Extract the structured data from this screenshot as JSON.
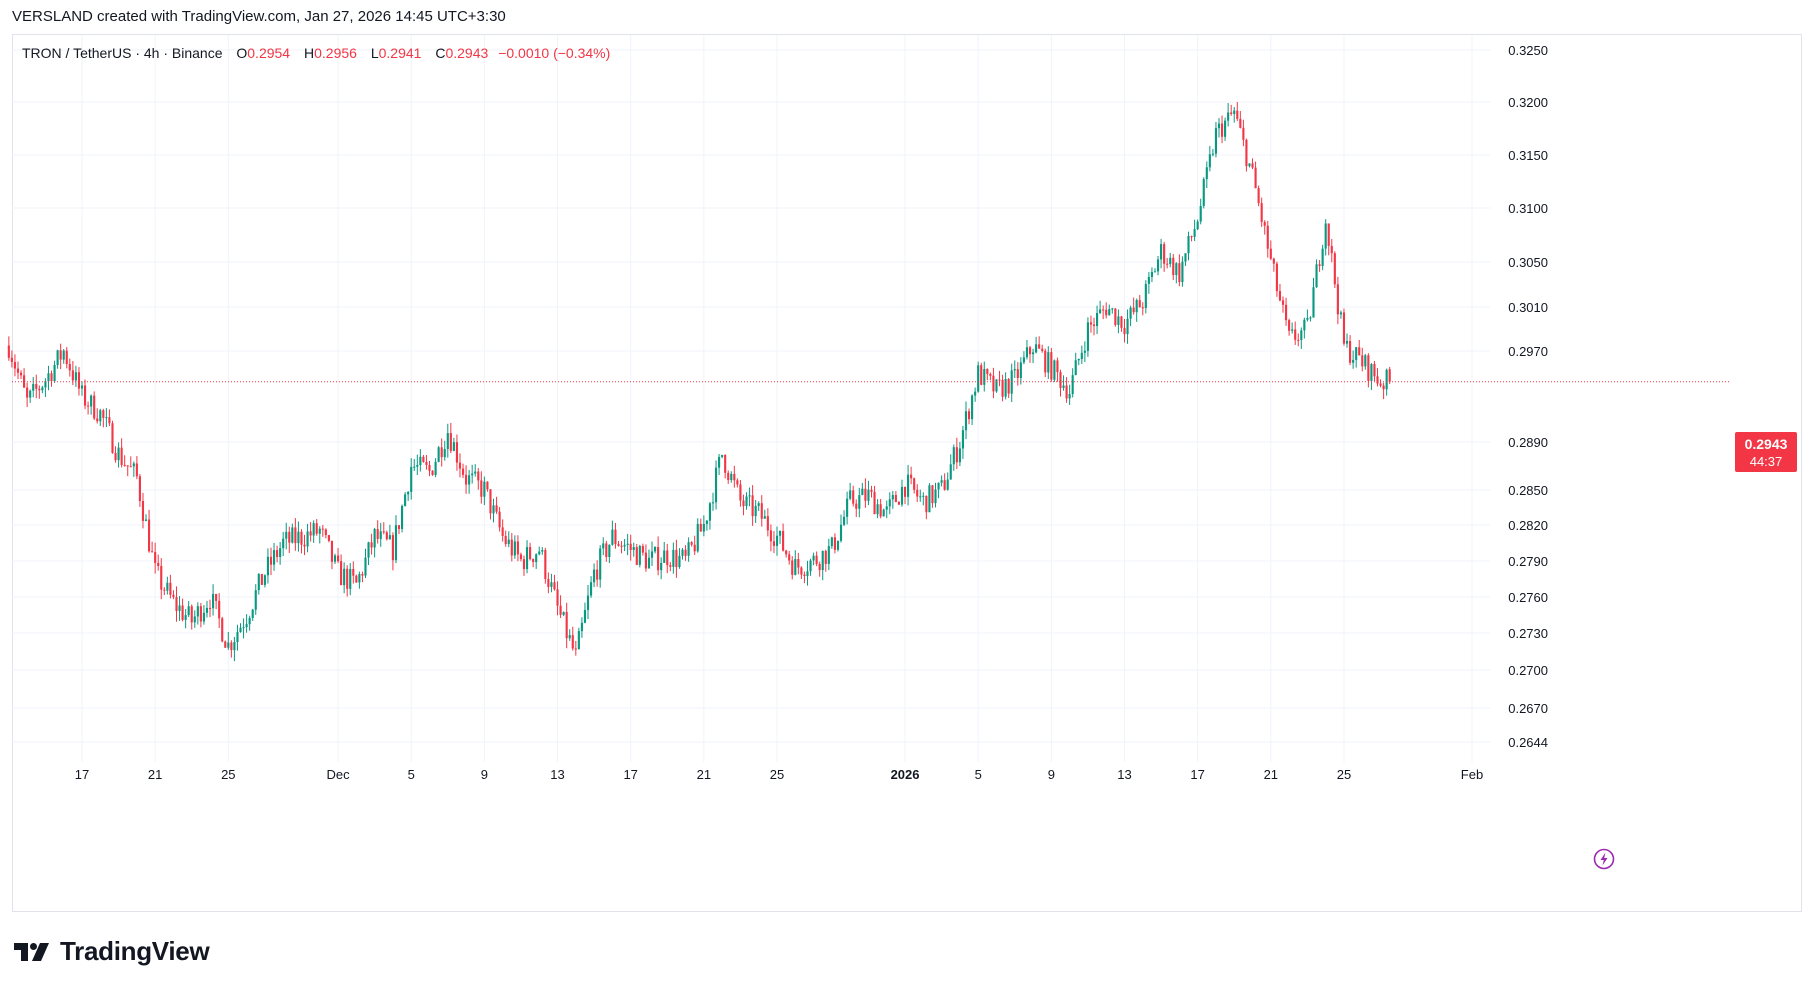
{
  "watermark": {
    "created_by": "VERSLAND created with TradingView.com, Jan 27, 2026 14:45 UTC+3:30"
  },
  "legend": {
    "symbol": "TRON / TetherUS · 4h · Binance",
    "open_label": "O",
    "open": "0.2954",
    "high_label": "H",
    "high": "0.2956",
    "low_label": "L",
    "low": "0.2941",
    "close_label": "C",
    "close": "0.2943",
    "change": "−0.0010 (−0.34%)"
  },
  "price_badge": {
    "price": "0.2943",
    "countdown": "44:37"
  },
  "brand": {
    "name": "TradingView"
  },
  "icons": [
    "tradingview-logo-icon",
    "lightning-icon"
  ],
  "colors": {
    "up": "#089981",
    "down": "#f23645",
    "grid": "#f0f3fa",
    "axis_text": "#131722"
  },
  "chart_data": {
    "type": "candlestick",
    "title": "TRON / TetherUS · 4h · Binance",
    "interval": "4h",
    "y_ticks": [
      "0.3250",
      "0.3200",
      "0.3150",
      "0.3100",
      "0.3050",
      "0.3010",
      "0.2970",
      "0.2890",
      "0.2850",
      "0.2820",
      "0.2790",
      "0.2760",
      "0.2730",
      "0.2700",
      "0.2670",
      "0.2644"
    ],
    "x_ticks": [
      {
        "label": "17",
        "date": "2025-11-17"
      },
      {
        "label": "21",
        "date": "2025-11-21"
      },
      {
        "label": "25",
        "date": "2025-11-25"
      },
      {
        "label": "Dec",
        "date": "2025-12-01"
      },
      {
        "label": "5",
        "date": "2025-12-05"
      },
      {
        "label": "9",
        "date": "2025-12-09"
      },
      {
        "label": "13",
        "date": "2025-12-13"
      },
      {
        "label": "17",
        "date": "2025-12-17"
      },
      {
        "label": "21",
        "date": "2025-12-21"
      },
      {
        "label": "25",
        "date": "2025-12-25"
      },
      {
        "label": "2026",
        "date": "2026-01-01",
        "bold": true
      },
      {
        "label": "5",
        "date": "2026-01-05"
      },
      {
        "label": "9",
        "date": "2026-01-09"
      },
      {
        "label": "13",
        "date": "2026-01-13"
      },
      {
        "label": "17",
        "date": "2026-01-17"
      },
      {
        "label": "21",
        "date": "2026-01-21"
      },
      {
        "label": "25",
        "date": "2026-01-25"
      },
      {
        "label": "Feb",
        "date": "2026-02-01"
      }
    ],
    "x_range": [
      "2025-11-13",
      "2026-02-02"
    ],
    "last_price": 0.2943,
    "last_price_line": "dotted",
    "grid": true,
    "close_path": [
      {
        "date": "2025-11-13",
        "close": 0.2975
      },
      {
        "date": "2025-11-14",
        "close": 0.2925
      },
      {
        "date": "2025-11-15",
        "close": 0.2945
      },
      {
        "date": "2025-11-16",
        "close": 0.297
      },
      {
        "date": "2025-11-17",
        "close": 0.293
      },
      {
        "date": "2025-11-18",
        "close": 0.2915
      },
      {
        "date": "2025-11-19",
        "close": 0.288
      },
      {
        "date": "2025-11-20",
        "close": 0.286
      },
      {
        "date": "2025-11-21",
        "close": 0.278
      },
      {
        "date": "2025-11-22",
        "close": 0.2755
      },
      {
        "date": "2025-11-23",
        "close": 0.274
      },
      {
        "date": "2025-11-24",
        "close": 0.276
      },
      {
        "date": "2025-11-25",
        "close": 0.272
      },
      {
        "date": "2025-11-26",
        "close": 0.2745
      },
      {
        "date": "2025-11-27",
        "close": 0.278
      },
      {
        "date": "2025-11-28",
        "close": 0.2805
      },
      {
        "date": "2025-11-29",
        "close": 0.281
      },
      {
        "date": "2025-11-30",
        "close": 0.2815
      },
      {
        "date": "2025-12-01",
        "close": 0.278
      },
      {
        "date": "2025-12-02",
        "close": 0.277
      },
      {
        "date": "2025-12-03",
        "close": 0.281
      },
      {
        "date": "2025-12-04",
        "close": 0.28
      },
      {
        "date": "2025-12-05",
        "close": 0.287
      },
      {
        "date": "2025-12-06",
        "close": 0.2865
      },
      {
        "date": "2025-12-07",
        "close": 0.29
      },
      {
        "date": "2025-12-08",
        "close": 0.286
      },
      {
        "date": "2025-12-09",
        "close": 0.285
      },
      {
        "date": "2025-12-10",
        "close": 0.281
      },
      {
        "date": "2025-12-11",
        "close": 0.279
      },
      {
        "date": "2025-12-12",
        "close": 0.28
      },
      {
        "date": "2025-12-13",
        "close": 0.275
      },
      {
        "date": "2025-12-14",
        "close": 0.271
      },
      {
        "date": "2025-12-15",
        "close": 0.278
      },
      {
        "date": "2025-12-16",
        "close": 0.281
      },
      {
        "date": "2025-12-17",
        "close": 0.28
      },
      {
        "date": "2025-12-18",
        "close": 0.279
      },
      {
        "date": "2025-12-19",
        "close": 0.2795
      },
      {
        "date": "2025-12-20",
        "close": 0.279
      },
      {
        "date": "2025-12-21",
        "close": 0.282
      },
      {
        "date": "2025-12-22",
        "close": 0.288
      },
      {
        "date": "2025-12-23",
        "close": 0.284
      },
      {
        "date": "2025-12-24",
        "close": 0.283
      },
      {
        "date": "2025-12-25",
        "close": 0.281
      },
      {
        "date": "2025-12-26",
        "close": 0.2785
      },
      {
        "date": "2025-12-27",
        "close": 0.279
      },
      {
        "date": "2025-12-28",
        "close": 0.28
      },
      {
        "date": "2025-12-29",
        "close": 0.284
      },
      {
        "date": "2025-12-30",
        "close": 0.2845
      },
      {
        "date": "2025-12-31",
        "close": 0.283
      },
      {
        "date": "2026-01-01",
        "close": 0.2855
      },
      {
        "date": "2026-01-02",
        "close": 0.284
      },
      {
        "date": "2026-01-03",
        "close": 0.285
      },
      {
        "date": "2026-01-04",
        "close": 0.289
      },
      {
        "date": "2026-01-05",
        "close": 0.295
      },
      {
        "date": "2026-01-06",
        "close": 0.2935
      },
      {
        "date": "2026-01-07",
        "close": 0.2945
      },
      {
        "date": "2026-01-08",
        "close": 0.2975
      },
      {
        "date": "2026-01-09",
        "close": 0.2955
      },
      {
        "date": "2026-01-10",
        "close": 0.2935
      },
      {
        "date": "2026-01-11",
        "close": 0.299
      },
      {
        "date": "2026-01-12",
        "close": 0.301
      },
      {
        "date": "2026-01-13",
        "close": 0.2995
      },
      {
        "date": "2026-01-14",
        "close": 0.3015
      },
      {
        "date": "2026-01-15",
        "close": 0.306
      },
      {
        "date": "2026-01-16",
        "close": 0.304
      },
      {
        "date": "2026-01-17",
        "close": 0.309
      },
      {
        "date": "2026-01-18",
        "close": 0.317
      },
      {
        "date": "2026-01-19",
        "close": 0.319
      },
      {
        "date": "2026-01-20",
        "close": 0.313
      },
      {
        "date": "2026-01-21",
        "close": 0.305
      },
      {
        "date": "2026-01-22",
        "close": 0.298
      },
      {
        "date": "2026-01-23",
        "close": 0.299
      },
      {
        "date": "2026-01-24",
        "close": 0.309
      },
      {
        "date": "2026-01-25",
        "close": 0.2975
      },
      {
        "date": "2026-01-26",
        "close": 0.296
      },
      {
        "date": "2026-01-27",
        "close": 0.2943
      }
    ],
    "key_levels": {
      "high": {
        "date": "2026-01-18",
        "value": 0.3205
      },
      "low": {
        "date": "2025-12-14",
        "value": 0.2705
      },
      "low_nov": {
        "date": "2025-11-25",
        "value": 0.271
      }
    }
  }
}
